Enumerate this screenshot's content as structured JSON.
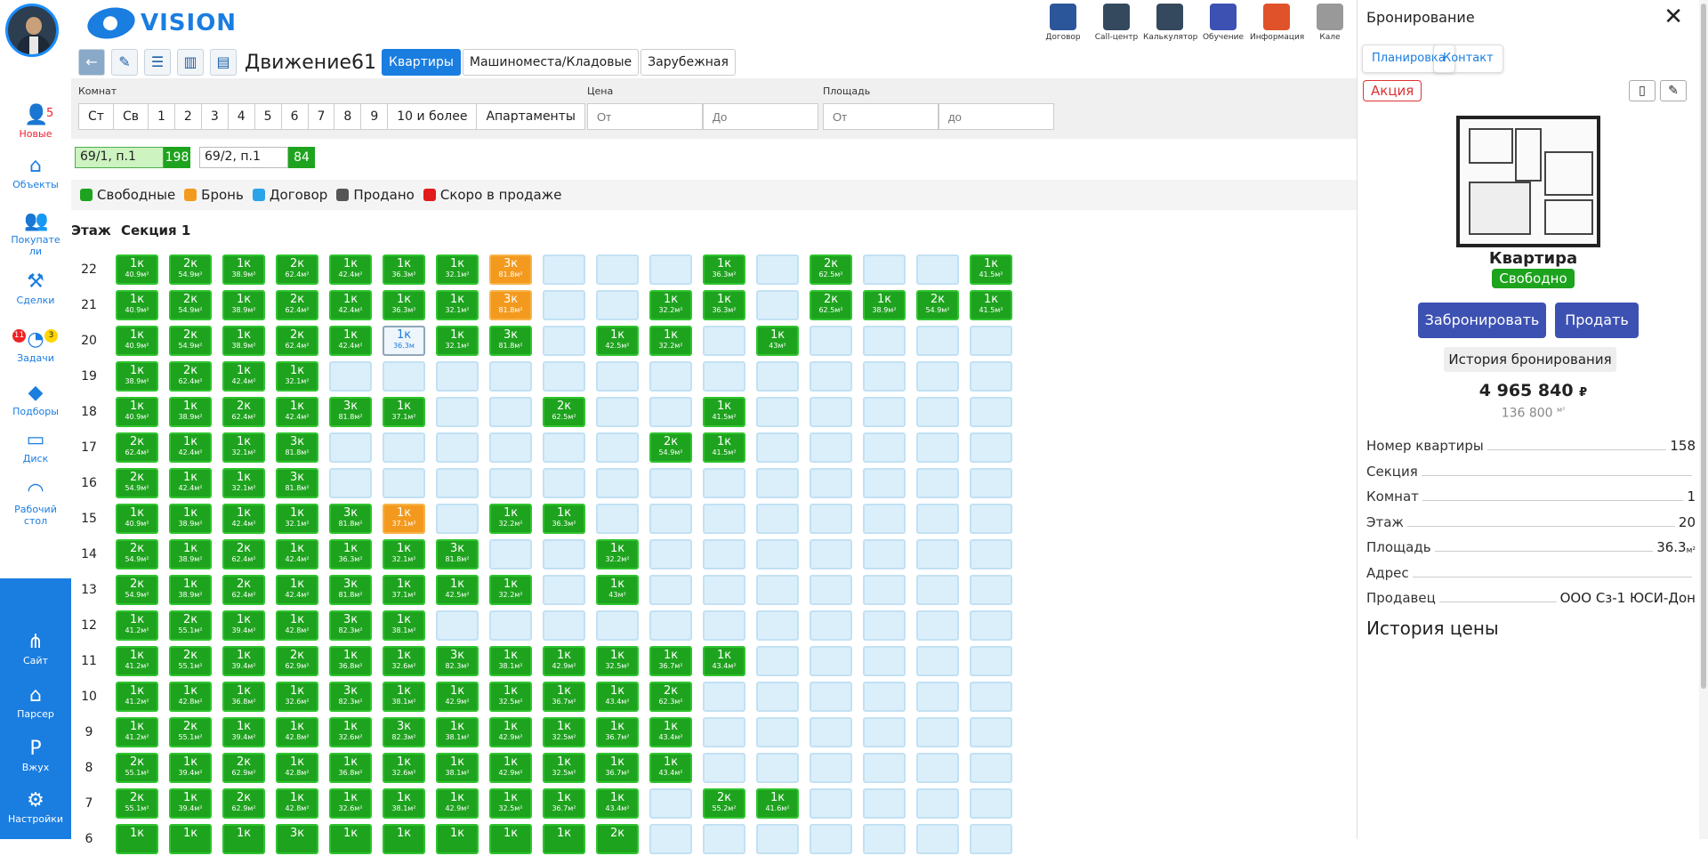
{
  "sidebar": {
    "items": [
      {
        "name": "new",
        "label": "Новые",
        "count": "5",
        "icon": "user-plus-icon"
      },
      {
        "name": "objects",
        "label": "Объекты",
        "icon": "home-icon"
      },
      {
        "name": "buyers",
        "label1": "Покупате",
        "label2": "ли",
        "icon": "users-icon"
      },
      {
        "name": "deals",
        "label": "Сделки",
        "icon": "hammer-icon"
      },
      {
        "name": "tasks",
        "label": "Задачи",
        "badge_red": "11",
        "badge_yellow": "3",
        "icon": "clock-icon"
      },
      {
        "name": "selections",
        "label": "Подборы",
        "icon": "chat-icon"
      },
      {
        "name": "disk",
        "label": "Диск",
        "icon": "inbox-icon"
      },
      {
        "name": "desktop",
        "label1": "Рабочий",
        "label2": "стол",
        "icon": "dashboard-icon"
      },
      {
        "name": "site",
        "label": "Сайт",
        "icon": "sitemap-icon"
      },
      {
        "name": "parser",
        "label": "Парсер",
        "icon": "house-plus-icon"
      },
      {
        "name": "vzhukh",
        "label": "Вжух",
        "icon": "parking-icon"
      },
      {
        "name": "settings",
        "label": "Настройки",
        "icon": "gears-icon"
      }
    ]
  },
  "logo": {
    "text": "VISION"
  },
  "tools": [
    {
      "label": "Договор",
      "icon": "word-icon",
      "color": "#2b579a"
    },
    {
      "label": "Call-центр",
      "icon": "headset-icon",
      "color": "#34495e"
    },
    {
      "label": "Калькулятор",
      "icon": "calculator-icon",
      "color": "#34495e"
    },
    {
      "label": "Обучение",
      "icon": "graduate-icon",
      "color": "#3d51b2"
    },
    {
      "label": "Информация",
      "icon": "briefcase-icon",
      "color": "#e0532a"
    },
    {
      "label": "Кале",
      "icon": "calendar-icon",
      "color": "#999"
    }
  ],
  "toolbar": {
    "title": "Движение61",
    "tabs": [
      "Квартиры",
      "Машиноместа/Кладовые",
      "Зарубежная"
    ]
  },
  "filters": {
    "rooms_label": "Комнат",
    "rooms": [
      "Ст",
      "Св",
      "1",
      "2",
      "3",
      "4",
      "5",
      "6",
      "7",
      "8",
      "9",
      "10 и более",
      "Апартаменты"
    ],
    "price_label": "Цена",
    "price_from": "От",
    "price_to": "До",
    "area_label": "Площадь",
    "area_from": "От",
    "area_to": "до"
  },
  "houses": [
    {
      "name": "69/1, п.1",
      "count": "198"
    },
    {
      "name": "69/2, п.1",
      "count": "84"
    }
  ],
  "legend": [
    {
      "label": "Свободные",
      "color": "#1ea31e"
    },
    {
      "label": "Бронь",
      "color": "#f39a1e"
    },
    {
      "label": "Договор",
      "color": "#2aa3e8"
    },
    {
      "label": "Продано",
      "color": "#555555"
    },
    {
      "label": "Скоро в продаже",
      "color": "#e21b1b"
    }
  ],
  "grid": {
    "floor_label": "Этаж",
    "section_label": "Секция 1",
    "rows": [
      {
        "floor": "22",
        "cells": [
          "g|1к|40.9м²",
          "g|2к|54.9м²",
          "g|1к|38.9м²",
          "g|2к|62.4м²",
          "g|1к|42.4м²",
          "g|1к|36.3м²",
          "g|1к|32.1м²",
          "o|3к|81.8м²",
          "e",
          "e",
          "e",
          "g|1к|36.3м²",
          "e",
          "g|2к|62.5м²",
          "e",
          "e",
          "g|1к|41.5м²"
        ]
      },
      {
        "floor": "21",
        "cells": [
          "g|1к|40.9м²",
          "g|2к|54.9м²",
          "g|1к|38.9м²",
          "g|2к|62.4м²",
          "g|1к|42.4м²",
          "g|1к|36.3м²",
          "g|1к|32.1м²",
          "o|3к|81.8м²",
          "e",
          "e",
          "g|1к|32.2м²",
          "g|1к|36.3м²",
          "e",
          "g|2к|62.5м²",
          "g|1к|38.9м²",
          "g|2к|54.9м²",
          "g|1к|41.5м²"
        ]
      },
      {
        "floor": "20",
        "cells": [
          "g|1к|40.9м²",
          "g|2к|54.9м²",
          "g|1к|38.9м²",
          "g|2к|62.4м²",
          "g|1к|42.4м²",
          "w|1к|36.3м",
          "g|1к|32.1м²",
          "g|3к|81.8м²",
          "e",
          "g|1к|42.5м²",
          "g|1к|32.2м²",
          "e",
          "g|1к|43м²",
          "e",
          "e",
          "e",
          "e"
        ]
      },
      {
        "floor": "19",
        "cells": [
          "g|1к|38.9м²",
          "g|2к|62.4м²",
          "g|1к|42.4м²",
          "g|1к|32.1м²",
          "e",
          "e",
          "e",
          "e",
          "e",
          "e",
          "e",
          "e",
          "e",
          "e",
          "e",
          "e",
          "e"
        ]
      },
      {
        "floor": "18",
        "cells": [
          "g|1к|40.9м²",
          "g|1к|38.9м²",
          "g|2к|62.4м²",
          "g|1к|42.4м²",
          "g|3к|81.8м²",
          "g|1к|37.1м²",
          "e",
          "e",
          "g|2к|62.5м²",
          "e",
          "e",
          "g|1к|41.5м²",
          "e",
          "e",
          "e",
          "e",
          "e"
        ]
      },
      {
        "floor": "17",
        "cells": [
          "g|2к|62.4м²",
          "g|1к|42.4м²",
          "g|1к|32.1м²",
          "g|3к|81.8м²",
          "e",
          "e",
          "e",
          "e",
          "e",
          "e",
          "g|2к|54.9м²",
          "g|1к|41.5м²",
          "e",
          "e",
          "e",
          "e",
          "e"
        ]
      },
      {
        "floor": "16",
        "cells": [
          "g|2к|54.9м²",
          "g|1к|42.4м²",
          "g|1к|32.1м²",
          "g|3к|81.8м²",
          "e",
          "e",
          "e",
          "e",
          "e",
          "e",
          "e",
          "e",
          "e",
          "e",
          "e",
          "e",
          "e"
        ]
      },
      {
        "floor": "15",
        "cells": [
          "g|1к|40.9м²",
          "g|1к|38.9м²",
          "g|1к|42.4м²",
          "g|1к|32.1м²",
          "g|3к|81.8м²",
          "o|1к|37.1м²",
          "e",
          "g|1к|32.2м²",
          "g|1к|36.3м²",
          "e",
          "e",
          "e",
          "e",
          "e",
          "e",
          "e",
          "e"
        ]
      },
      {
        "floor": "14",
        "cells": [
          "g|2к|54.9м²",
          "g|1к|38.9м²",
          "g|2к|62.4м²",
          "g|1к|42.4м²",
          "g|1к|36.3м²",
          "g|1к|32.1м²",
          "g|3к|81.8м²",
          "e",
          "e",
          "g|1к|32.2м²",
          "e",
          "e",
          "e",
          "e",
          "e",
          "e",
          "e"
        ]
      },
      {
        "floor": "13",
        "cells": [
          "g|2к|54.9м²",
          "g|1к|38.9м²",
          "g|2к|62.4м²",
          "g|1к|42.4м²",
          "g|3к|81.8м²",
          "g|1к|37.1м²",
          "g|1к|42.5м²",
          "g|1к|32.2м²",
          "e",
          "g|1к|43м²",
          "e",
          "e",
          "e",
          "e",
          "e",
          "e",
          "e"
        ]
      },
      {
        "floor": "12",
        "cells": [
          "g|1к|41.2м²",
          "g|2к|55.1м²",
          "g|1к|39.4м²",
          "g|1к|42.8м²",
          "g|3к|82.3м²",
          "g|1к|38.1м²",
          "e",
          "e",
          "e",
          "e",
          "e",
          "e",
          "e",
          "e",
          "e",
          "e",
          "e"
        ]
      },
      {
        "floor": "11",
        "cells": [
          "g|1к|41.2м²",
          "g|2к|55.1м²",
          "g|1к|39.4м²",
          "g|2к|62.9м²",
          "g|1к|36.8м²",
          "g|1к|32.6м²",
          "g|3к|82.3м²",
          "g|1к|38.1м²",
          "g|1к|42.9м²",
          "g|1к|32.5м²",
          "g|1к|36.7м²",
          "g|1к|43.4м²",
          "e",
          "e",
          "e",
          "e",
          "e"
        ]
      },
      {
        "floor": "10",
        "cells": [
          "g|1к|41.2м²",
          "g|1к|42.8м²",
          "g|1к|36.8м²",
          "g|1к|32.6м²",
          "g|3к|82.3м²",
          "g|1к|38.1м²",
          "g|1к|42.9м²",
          "g|1к|32.5м²",
          "g|1к|36.7м²",
          "g|1к|43.4м²",
          "g|2к|62.3м²",
          "e",
          "e",
          "e",
          "e",
          "e",
          "e"
        ]
      },
      {
        "floor": "9",
        "cells": [
          "g|1к|41.2м²",
          "g|2к|55.1м²",
          "g|1к|39.4м²",
          "g|1к|42.8м²",
          "g|1к|32.6м²",
          "g|3к|82.3м²",
          "g|1к|38.1м²",
          "g|1к|42.9м²",
          "g|1к|32.5м²",
          "g|1к|36.7м²",
          "g|1к|43.4м²",
          "e",
          "e",
          "e",
          "e",
          "e",
          "e"
        ]
      },
      {
        "floor": "8",
        "cells": [
          "g|2к|55.1м²",
          "g|1к|39.4м²",
          "g|2к|62.9м²",
          "g|1к|42.8м²",
          "g|1к|36.8м²",
          "g|1к|32.6м²",
          "g|1к|38.1м²",
          "g|1к|42.9м²",
          "g|1к|32.5м²",
          "g|1к|36.7м²",
          "g|1к|43.4м²",
          "e",
          "e",
          "e",
          "e",
          "e",
          "e"
        ]
      },
      {
        "floor": "7",
        "cells": [
          "g|2к|55.1м²",
          "g|1к|39.4м²",
          "g|2к|62.9м²",
          "g|1к|42.8м²",
          "g|1к|32.6м²",
          "g|1к|38.1м²",
          "g|1к|42.9м²",
          "g|1к|32.5м²",
          "g|1к|36.7м²",
          "g|1к|43.4м²",
          "e",
          "g|2к|55.2м²",
          "g|1к|41.6м²",
          "e",
          "e",
          "e",
          "e"
        ]
      },
      {
        "floor": "6",
        "cells": [
          "g|1к|",
          "g|1к|",
          "g|1к|",
          "g|3к|",
          "g|1к|",
          "g|1к|",
          "g|1к|",
          "g|1к|",
          "g|1к|",
          "g|2к|",
          "e",
          "e",
          "e",
          "e",
          "e",
          "e",
          "e"
        ]
      }
    ]
  },
  "panel": {
    "title": "Бронирование",
    "tabs": [
      "Планировка",
      "Контакт"
    ],
    "promo": "Акция",
    "type": "Квартира",
    "status": "Свободно",
    "book_btn": "Забронировать",
    "sell_btn": "Продать",
    "history_btn": "История бронирования",
    "price": "4 965 840",
    "currency": "₽",
    "price_m2": "136 800",
    "m2": "м²",
    "props": [
      {
        "k": "Номер квартиры",
        "v": "158"
      },
      {
        "k": "Секция",
        "v": ""
      },
      {
        "k": "Комнат",
        "v": "1"
      },
      {
        "k": "Этаж",
        "v": "20"
      },
      {
        "k": "Площадь",
        "v": "36.3",
        "sup": "м²"
      },
      {
        "k": "Адрес",
        "v": ""
      },
      {
        "k": "Продавец",
        "v": "ООО Сз-1 ЮСИ-Дон"
      }
    ],
    "price_history": "История цены"
  }
}
